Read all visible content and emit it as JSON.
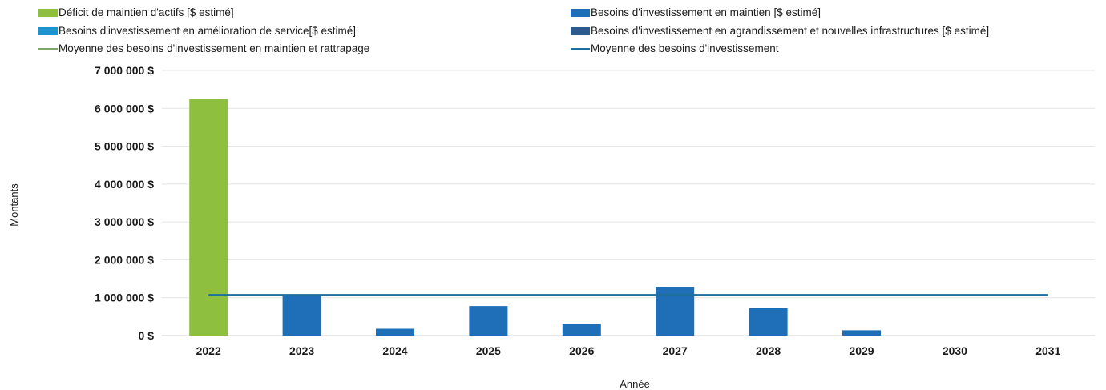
{
  "chart_data": {
    "type": "bar",
    "xlabel": "Année",
    "ylabel": "Montants",
    "categories": [
      "2022",
      "2023",
      "2024",
      "2025",
      "2026",
      "2027",
      "2028",
      "2029",
      "2030",
      "2031"
    ],
    "ylim": [
      0,
      7000000
    ],
    "yticks": [
      {
        "value": 0,
        "label": "0 $"
      },
      {
        "value": 1000000,
        "label": "1 000 000 $"
      },
      {
        "value": 2000000,
        "label": "2 000 000 $"
      },
      {
        "value": 3000000,
        "label": "3 000 000 $"
      },
      {
        "value": 4000000,
        "label": "4 000 000 $"
      },
      {
        "value": 5000000,
        "label": "5 000 000 $"
      },
      {
        "value": 6000000,
        "label": "6 000 000 $"
      },
      {
        "value": 7000000,
        "label": "7 000 000 $"
      }
    ],
    "grid": true,
    "legend_placement": "top",
    "series": [
      {
        "name": "Déficit de maintien d'actifs [$ estimé]",
        "kind": "bar",
        "color": "#8fbf3f",
        "values": [
          6250000,
          0,
          0,
          0,
          0,
          0,
          0,
          0,
          0,
          0
        ]
      },
      {
        "name": "Besoins d'investissement en maintien [$ estimé]",
        "kind": "bar",
        "color": "#1f6fb8",
        "values": [
          0,
          1050000,
          180000,
          780000,
          310000,
          1270000,
          730000,
          140000,
          0,
          0
        ]
      },
      {
        "name": "Besoins d'investissement en amélioration de service[$ estimé]",
        "kind": "bar",
        "color": "#1b93cf",
        "values": [
          0,
          0,
          0,
          0,
          0,
          0,
          0,
          0,
          0,
          0
        ]
      },
      {
        "name": "Besoins d'investissement en agrandissement et nouvelles infrastructures [$ estimé]",
        "kind": "bar",
        "color": "#2c5a8c",
        "values": [
          0,
          0,
          0,
          0,
          0,
          0,
          0,
          0,
          0,
          0
        ]
      },
      {
        "name": "Moyenne des besoins d'investissement en maintien et rattrapage",
        "kind": "line",
        "color": "#7aa86a",
        "values": [
          1070000,
          1070000,
          1070000,
          1070000,
          1070000,
          1070000,
          1070000,
          1070000,
          1070000,
          1070000
        ]
      },
      {
        "name": "Moyenne des besoins d'investissement",
        "kind": "line",
        "color": "#1e6f9e",
        "values": [
          1070000,
          1070000,
          1070000,
          1070000,
          1070000,
          1070000,
          1070000,
          1070000,
          1070000,
          1070000
        ]
      }
    ]
  }
}
